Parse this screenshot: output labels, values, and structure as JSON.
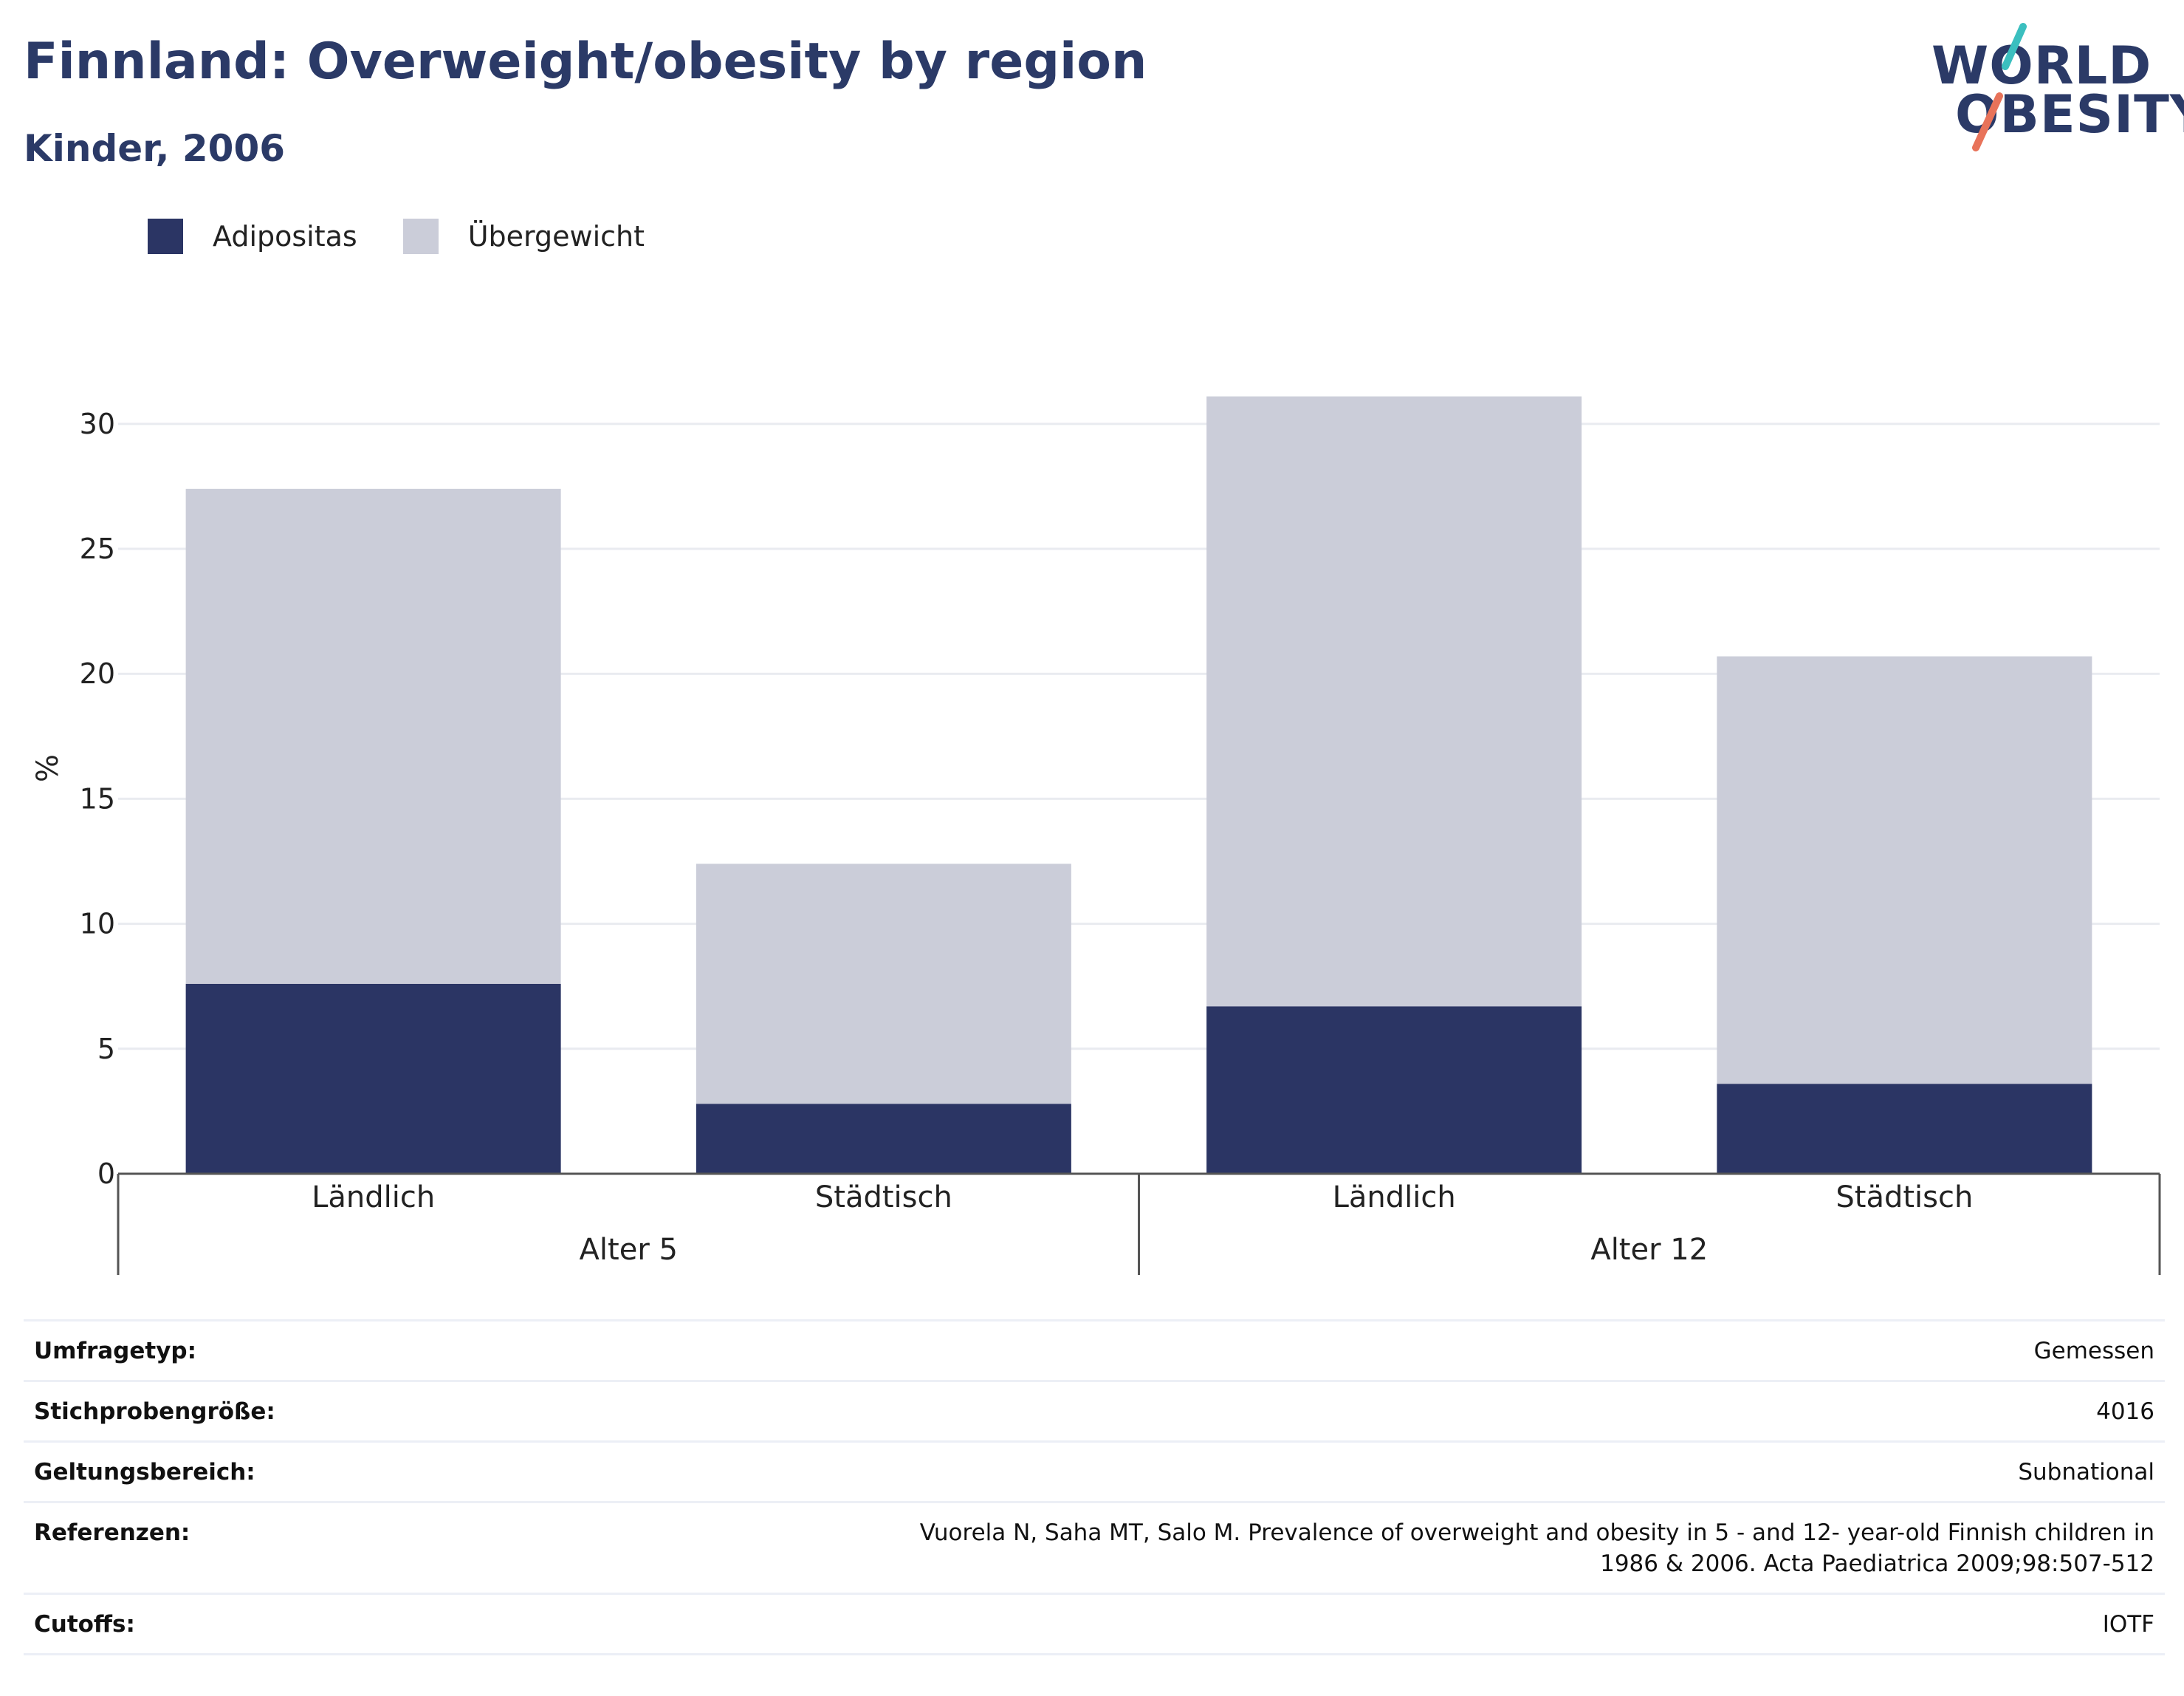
{
  "header": {
    "title": "Finnland: Overweight/obesity by region",
    "subtitle": "Kinder, 2006"
  },
  "logo": {
    "line1": "WORLD",
    "line2": "OBESITY",
    "accent_teal": "#3bbfbf",
    "accent_coral": "#e8735a"
  },
  "legend": [
    {
      "label": "Adipositas",
      "color": "#2b3564"
    },
    {
      "label": "Übergewicht",
      "color": "#cbcdd9"
    }
  ],
  "chart_data": {
    "type": "bar",
    "stacked": true,
    "ylabel": "%",
    "ylim": [
      0,
      31
    ],
    "yticks": [
      0,
      5,
      10,
      15,
      20,
      25,
      30
    ],
    "grid": true,
    "legend_position": "top-left",
    "groups": [
      {
        "label": "Alter 5",
        "categories": [
          "Ländlich",
          "Städtisch"
        ]
      },
      {
        "label": "Alter 12",
        "categories": [
          "Ländlich",
          "Städtisch"
        ]
      }
    ],
    "series": [
      {
        "name": "Adipositas",
        "color": "#2b3564",
        "values": [
          7.6,
          2.8,
          6.7,
          3.6
        ]
      },
      {
        "name": "Übergewicht",
        "color": "#cbcdd9",
        "values": [
          19.8,
          9.6,
          24.4,
          17.1
        ]
      }
    ]
  },
  "info": [
    {
      "key": "Umfragetyp:",
      "value": "Gemessen"
    },
    {
      "key": "Stichprobengröße:",
      "value": "4016"
    },
    {
      "key": "Geltungsbereich:",
      "value": "Subnational"
    },
    {
      "key": "Referenzen:",
      "value": "Vuorela N, Saha MT, Salo M. Prevalence of overweight and obesity in 5 - and 12- year-old Finnish children in 1986 & 2006. Acta Paediatrica 2009;98:507-512"
    },
    {
      "key": "Cutoffs:",
      "value": "IOTF"
    }
  ]
}
